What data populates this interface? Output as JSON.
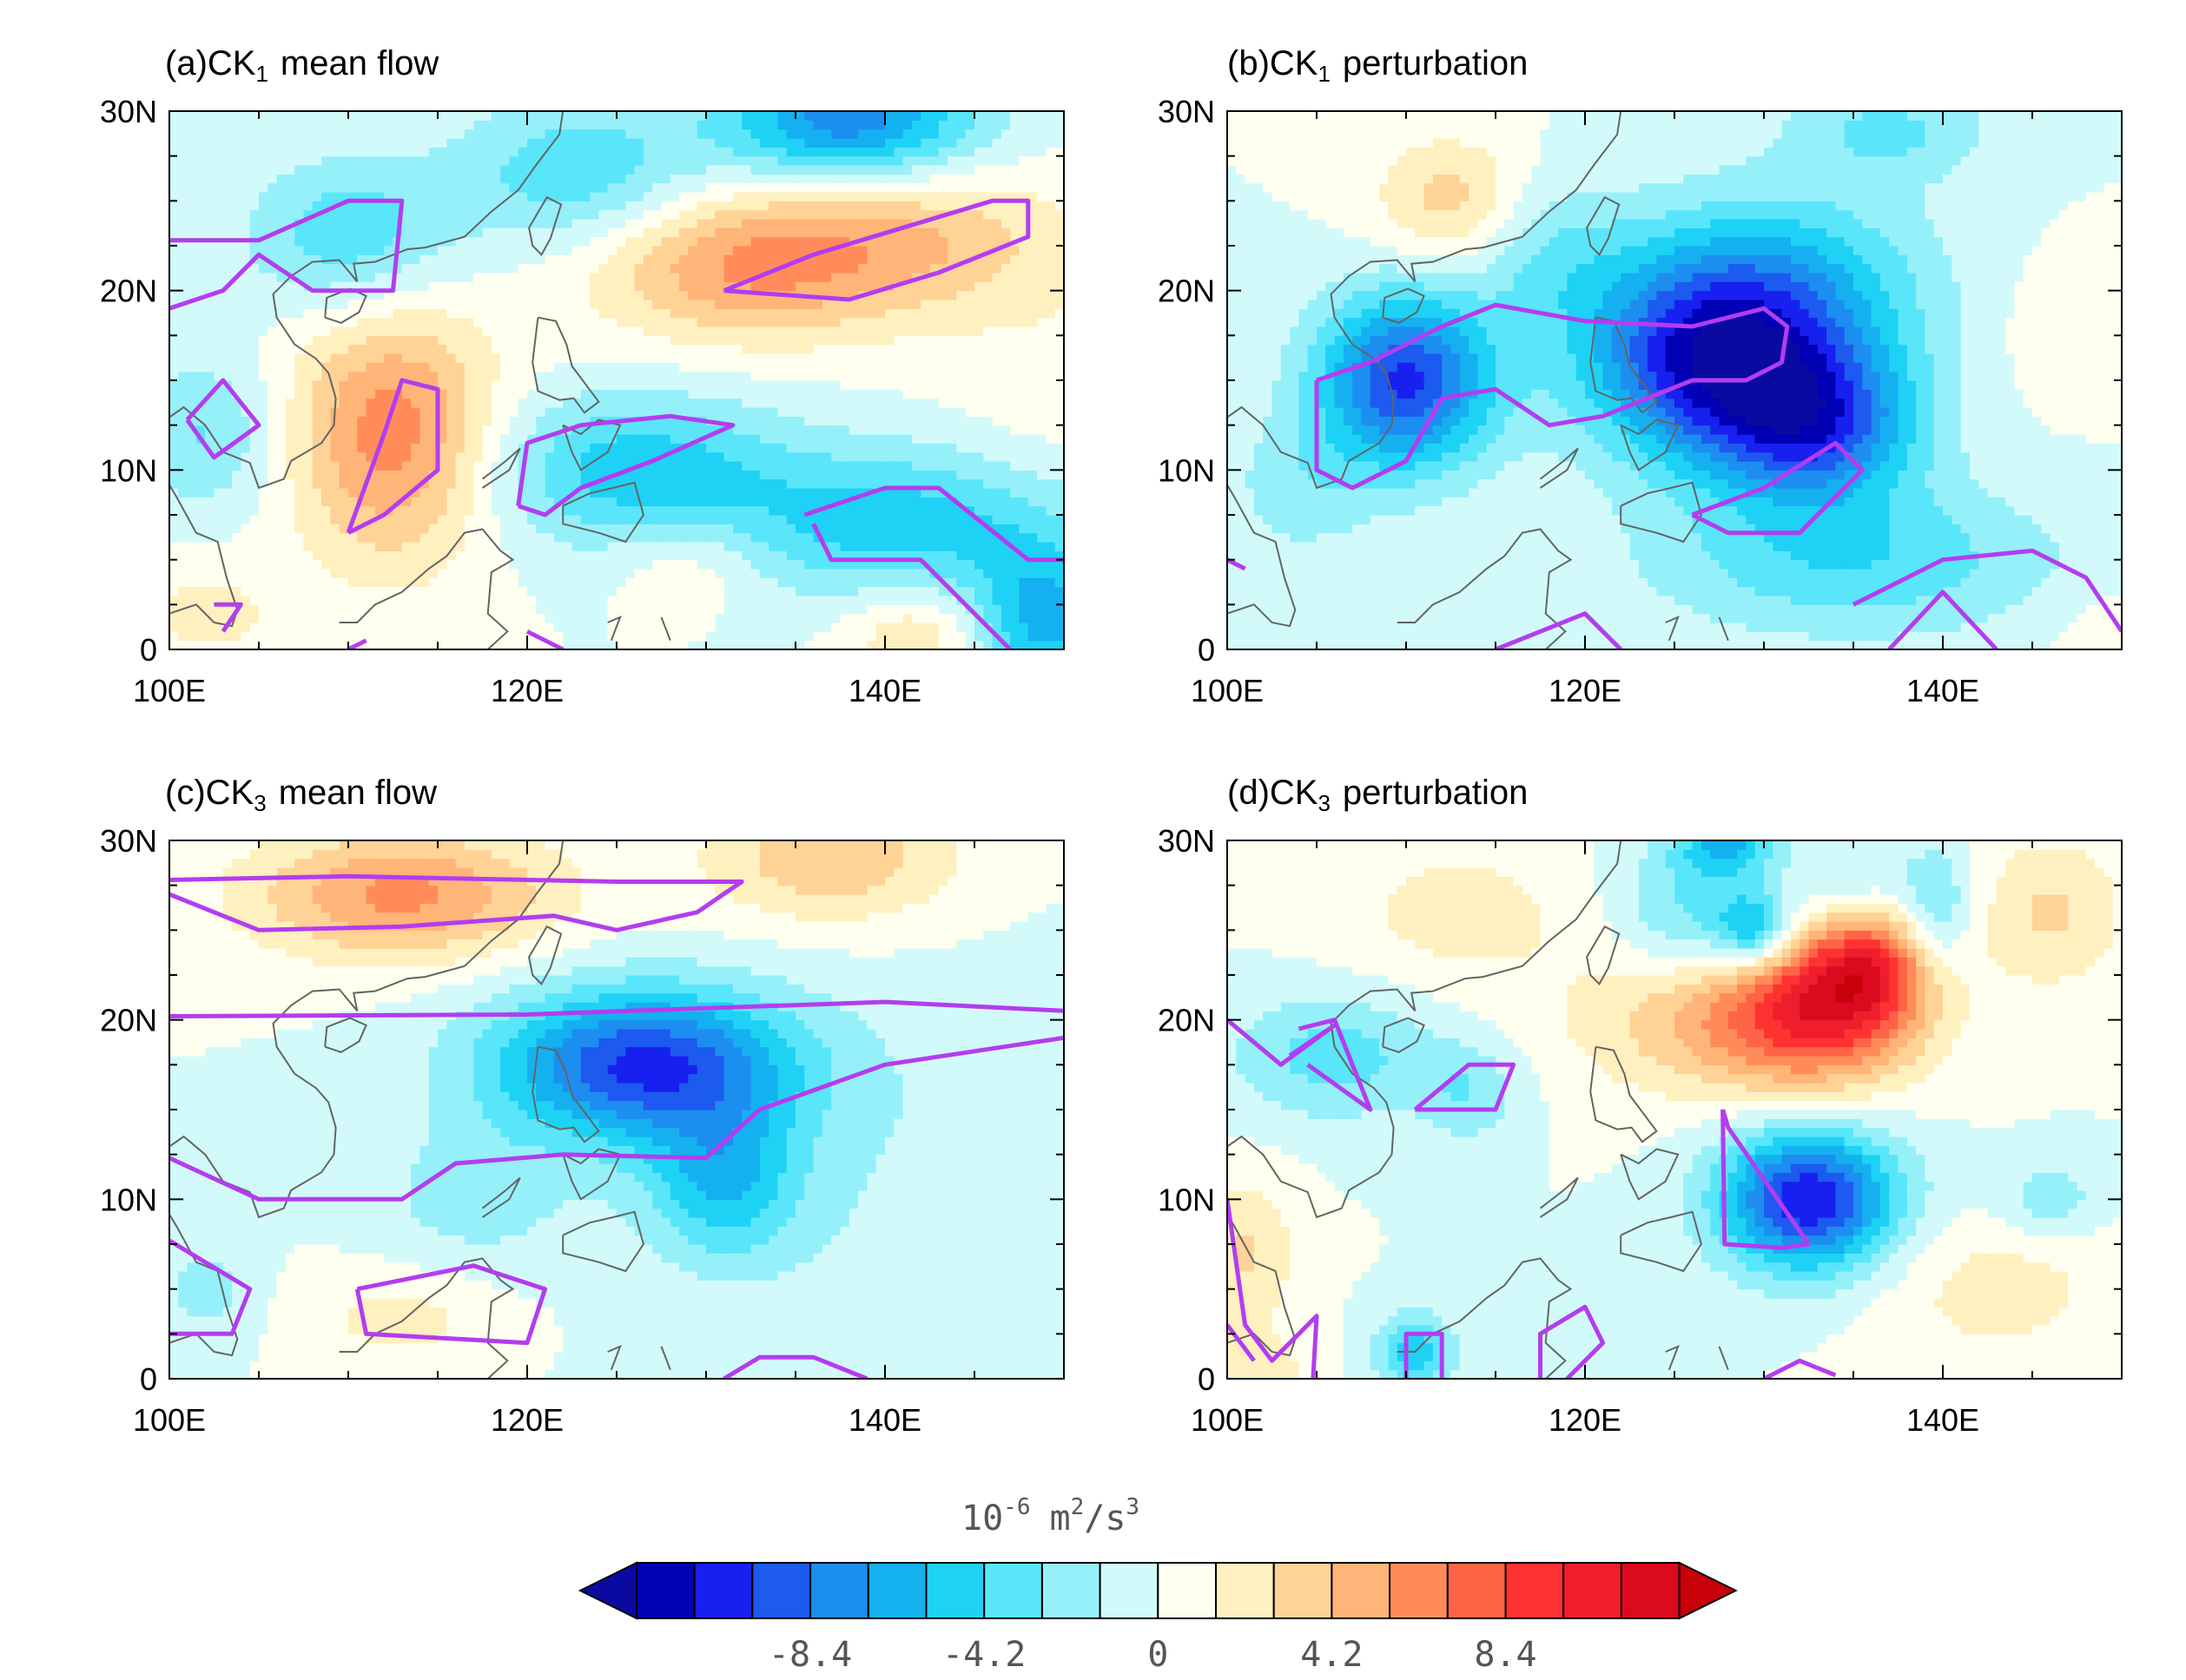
{
  "chart_data": [
    {
      "type": "heatmap",
      "panel": "a",
      "title_prefix": "(a)CK",
      "title_sub": "1",
      "title_suffix": "mean flow",
      "x_ticks": [
        "100E",
        "120E",
        "140E"
      ],
      "y_ticks": [
        "0",
        "10N",
        "20N",
        "30N"
      ],
      "xlim": [
        100,
        150
      ],
      "ylim": [
        0,
        30
      ],
      "blobs": [
        {
          "lon": 112.5,
          "lat": 12,
          "value": 6.5,
          "sx": 4,
          "sy": 5
        },
        {
          "lon": 132,
          "lat": 21.5,
          "value": 5.5,
          "sx": 6,
          "sy": 3
        },
        {
          "lon": 142,
          "lat": 23,
          "value": 3.5,
          "sx": 6,
          "sy": 3
        },
        {
          "lon": 138,
          "lat": 29.5,
          "value": -8,
          "sx": 5,
          "sy": 2.5
        },
        {
          "lon": 123,
          "lat": 26.5,
          "value": -4,
          "sx": 5,
          "sy": 3
        },
        {
          "lon": 110,
          "lat": 23,
          "value": -4,
          "sx": 4,
          "sy": 3
        },
        {
          "lon": 102,
          "lat": 12,
          "value": -3,
          "sx": 3,
          "sy": 3
        },
        {
          "lon": 126,
          "lat": 10,
          "value": -5,
          "sx": 6,
          "sy": 3
        },
        {
          "lon": 141,
          "lat": 7,
          "value": -5,
          "sx": 7,
          "sy": 3
        },
        {
          "lon": 149,
          "lat": 1.5,
          "value": -6,
          "sx": 3,
          "sy": 3
        },
        {
          "lon": 129,
          "lat": 5,
          "value": 2,
          "sx": 3,
          "sy": 2
        },
        {
          "lon": 142,
          "lat": 1,
          "value": 3,
          "sx": 3,
          "sy": 2
        },
        {
          "lon": 102,
          "lat": 2,
          "value": 2,
          "sx": 3,
          "sy": 2
        },
        {
          "lon": 150,
          "lat": 15,
          "value": 1,
          "sx": 5,
          "sy": 5
        }
      ],
      "contours": [
        [
          [
            100,
            22.8
          ],
          [
            105,
            22.8
          ],
          [
            110,
            25
          ],
          [
            113,
            25
          ],
          [
            112.5,
            20
          ],
          [
            108,
            20
          ],
          [
            105,
            22
          ],
          [
            103,
            20
          ],
          [
            100,
            19
          ]
        ],
        [
          [
            101,
            12.8
          ],
          [
            103,
            15
          ],
          [
            105,
            12.5
          ],
          [
            102.5,
            10.7
          ],
          [
            101,
            12.8
          ]
        ],
        [
          [
            110,
            6.5
          ],
          [
            112,
            12
          ],
          [
            113,
            15
          ],
          [
            115,
            14.5
          ],
          [
            115,
            10
          ],
          [
            112,
            7.5
          ],
          [
            110,
            6.5
          ]
        ],
        [
          [
            131,
            20
          ],
          [
            136,
            22
          ],
          [
            141,
            23.5
          ],
          [
            146,
            25
          ],
          [
            148,
            25
          ],
          [
            148,
            23
          ],
          [
            143,
            21
          ],
          [
            138,
            19.5
          ],
          [
            131,
            20
          ]
        ],
        [
          [
            119.5,
            8
          ],
          [
            120,
            11.5
          ],
          [
            123,
            12.5
          ],
          [
            128,
            13
          ],
          [
            131.5,
            12.5
          ],
          [
            127,
            10.5
          ],
          [
            123,
            9
          ],
          [
            121,
            7.5
          ],
          [
            119.5,
            8
          ]
        ],
        [
          [
            135.5,
            7.5
          ],
          [
            140,
            9
          ],
          [
            143,
            9
          ],
          [
            148,
            5
          ],
          [
            150,
            5
          ]
        ],
        [
          [
            136,
            7
          ],
          [
            137,
            5
          ],
          [
            142,
            5
          ],
          [
            147,
            0
          ]
        ],
        [
          [
            102.5,
            2.5
          ],
          [
            104,
            2.5
          ],
          [
            103,
            1
          ]
        ],
        [
          [
            110,
            0
          ],
          [
            111,
            0.5
          ]
        ],
        [
          [
            120,
            1
          ],
          [
            122,
            0
          ]
        ]
      ]
    },
    {
      "type": "heatmap",
      "panel": "b",
      "title_prefix": "(b)CK",
      "title_sub": "1",
      "title_suffix": "perturbation",
      "x_ticks": [
        "100E",
        "120E",
        "140E"
      ],
      "y_ticks": [
        "0",
        "10N",
        "20N",
        "30N"
      ],
      "xlim": [
        100,
        150
      ],
      "ylim": [
        0,
        30
      ],
      "blobs": [
        {
          "lon": 110,
          "lat": 15,
          "value": -10,
          "sx": 3.5,
          "sy": 3.5
        },
        {
          "lon": 127,
          "lat": 16,
          "value": -10,
          "sx": 5,
          "sy": 4
        },
        {
          "lon": 133,
          "lat": 12.5,
          "value": -8,
          "sx": 4,
          "sy": 3
        },
        {
          "lon": 131,
          "lat": 20,
          "value": -5,
          "sx": 6,
          "sy": 4
        },
        {
          "lon": 135,
          "lat": 5,
          "value": -4,
          "sx": 8,
          "sy": 3
        },
        {
          "lon": 137,
          "lat": 29,
          "value": -3,
          "sx": 4,
          "sy": 2
        },
        {
          "lon": 112.5,
          "lat": 25,
          "value": 3.5,
          "sx": 3,
          "sy": 2.5
        },
        {
          "lon": 118,
          "lat": 22,
          "value": -2.5,
          "sx": 3,
          "sy": 3
        },
        {
          "lon": 104,
          "lat": 9,
          "value": -2,
          "sx": 3,
          "sy": 3
        },
        {
          "lon": 147,
          "lat": 18,
          "value": 1,
          "sx": 3,
          "sy": 3
        },
        {
          "lon": 150,
          "lat": 1,
          "value": 1,
          "sx": 3,
          "sy": 2
        }
      ],
      "contours": [
        [
          [
            105,
            15
          ],
          [
            108,
            16
          ],
          [
            112,
            18
          ],
          [
            115,
            19.2
          ],
          [
            120,
            18.3
          ],
          [
            126,
            18
          ],
          [
            130,
            19
          ],
          [
            131.3,
            18
          ],
          [
            131,
            16
          ],
          [
            129,
            15
          ],
          [
            126,
            15
          ],
          [
            121,
            13
          ],
          [
            118,
            12.5
          ],
          [
            115,
            14.5
          ],
          [
            112,
            14
          ],
          [
            110,
            10.5
          ],
          [
            107,
            9
          ],
          [
            105,
            10
          ],
          [
            105,
            15
          ]
        ],
        [
          [
            126,
            7.5
          ],
          [
            130,
            9
          ],
          [
            134,
            11.5
          ],
          [
            135.5,
            10
          ],
          [
            132,
            6.5
          ],
          [
            128,
            6.5
          ],
          [
            126,
            7.5
          ]
        ],
        [
          [
            135,
            2.5
          ],
          [
            140,
            5
          ],
          [
            145,
            5.5
          ],
          [
            148,
            4
          ],
          [
            150,
            1
          ]
        ],
        [
          [
            137,
            0
          ],
          [
            140,
            3.2
          ],
          [
            143,
            0
          ]
        ],
        [
          [
            115,
            0
          ],
          [
            120,
            2
          ],
          [
            122,
            0
          ]
        ],
        [
          [
            100,
            5
          ],
          [
            101,
            4.5
          ]
        ]
      ]
    },
    {
      "type": "heatmap",
      "panel": "c",
      "title_prefix": "(c)CK",
      "title_sub": "3",
      "title_suffix": "mean flow",
      "x_ticks": [
        "100E",
        "120E",
        "140E"
      ],
      "y_ticks": [
        "0",
        "10N",
        "20N",
        "30N"
      ],
      "xlim": [
        100,
        150
      ],
      "ylim": [
        0,
        30
      ],
      "blobs": [
        {
          "lon": 113,
          "lat": 27,
          "value": 6,
          "sx": 6,
          "sy": 2.5
        },
        {
          "lon": 137,
          "lat": 29,
          "value": 4,
          "sx": 5,
          "sy": 2.5
        },
        {
          "lon": 126.5,
          "lat": 17.5,
          "value": -10,
          "sx": 6,
          "sy": 3
        },
        {
          "lon": 131,
          "lat": 11,
          "value": -5,
          "sx": 3,
          "sy": 3
        },
        {
          "lon": 117,
          "lat": 10,
          "value": -2,
          "sx": 4,
          "sy": 3
        },
        {
          "lon": 113,
          "lat": 3.5,
          "value": 2,
          "sx": 4,
          "sy": 2
        },
        {
          "lon": 102,
          "lat": 5,
          "value": -2,
          "sx": 2,
          "sy": 2
        },
        {
          "lon": 142,
          "lat": 10,
          "value": -1.2,
          "sx": 10,
          "sy": 8
        }
      ],
      "contours": [
        [
          [
            100,
            27.8
          ],
          [
            110,
            28
          ],
          [
            125,
            27.7
          ],
          [
            132,
            27.7
          ],
          [
            129.5,
            26
          ],
          [
            125,
            25
          ],
          [
            121.5,
            25.8
          ],
          [
            113,
            25.2
          ],
          [
            105,
            25
          ],
          [
            100,
            27
          ]
        ],
        [
          [
            100,
            20.2
          ],
          [
            120,
            20.3
          ],
          [
            140,
            21
          ],
          [
            150,
            20.5
          ]
        ],
        [
          [
            100,
            12.3
          ],
          [
            105,
            10
          ],
          [
            113,
            10
          ],
          [
            116,
            12
          ],
          [
            122,
            12.5
          ],
          [
            130,
            12.3
          ],
          [
            133,
            15
          ],
          [
            140,
            17.5
          ],
          [
            150,
            19
          ]
        ],
        [
          [
            100,
            7.7
          ],
          [
            104.5,
            5
          ],
          [
            103.5,
            2.5
          ],
          [
            100,
            2.5
          ]
        ],
        [
          [
            110.5,
            5
          ],
          [
            117,
            6.3
          ],
          [
            121,
            5
          ],
          [
            120,
            2
          ],
          [
            111,
            2.5
          ],
          [
            110.5,
            5
          ]
        ],
        [
          [
            131,
            0
          ],
          [
            133,
            1.2
          ],
          [
            136,
            1.2
          ],
          [
            139,
            0
          ]
        ]
      ]
    },
    {
      "type": "heatmap",
      "panel": "d",
      "title_prefix": "(d)CK",
      "title_sub": "3",
      "title_suffix": "perturbation",
      "x_ticks": [
        "100E",
        "120E",
        "140E"
      ],
      "y_ticks": [
        "0",
        "10N",
        "20N",
        "30N"
      ],
      "xlim": [
        100,
        150
      ],
      "ylim": [
        0,
        30
      ],
      "blobs": [
        {
          "lon": 133,
          "lat": 20.5,
          "value": 9,
          "sx": 4,
          "sy": 3
        },
        {
          "lon": 136,
          "lat": 23.5,
          "value": 7,
          "sx": 2.5,
          "sy": 2.5
        },
        {
          "lon": 126,
          "lat": 20,
          "value": 3.5,
          "sx": 5,
          "sy": 3
        },
        {
          "lon": 132.5,
          "lat": 10,
          "value": -11,
          "sx": 3.5,
          "sy": 2.8
        },
        {
          "lon": 129.5,
          "lat": 25,
          "value": -6,
          "sx": 1.5,
          "sy": 1.5
        },
        {
          "lon": 126,
          "lat": 26,
          "value": -3.5,
          "sx": 3,
          "sy": 3
        },
        {
          "lon": 128,
          "lat": 29.8,
          "value": -5,
          "sx": 2,
          "sy": 1.2
        },
        {
          "lon": 135,
          "lat": 27,
          "value": -3,
          "sx": 2,
          "sy": 2
        },
        {
          "lon": 139.5,
          "lat": 26,
          "value": -4,
          "sx": 1.5,
          "sy": 2.5
        },
        {
          "lon": 106,
          "lat": 18,
          "value": -3.5,
          "sx": 4,
          "sy": 2.5
        },
        {
          "lon": 113.5,
          "lat": 16,
          "value": -2.5,
          "sx": 2,
          "sy": 2
        },
        {
          "lon": 110.5,
          "lat": 1.5,
          "value": -5,
          "sx": 1.5,
          "sy": 1.5
        },
        {
          "lon": 101,
          "lat": 7,
          "value": 3,
          "sx": 2,
          "sy": 3
        },
        {
          "lon": 113,
          "lat": 26,
          "value": 2,
          "sx": 5,
          "sy": 3
        },
        {
          "lon": 146,
          "lat": 26,
          "value": 3,
          "sx": 3,
          "sy": 3
        },
        {
          "lon": 146,
          "lat": 10,
          "value": -2.5,
          "sx": 2,
          "sy": 1.5
        },
        {
          "lon": 143,
          "lat": 5,
          "value": 2,
          "sx": 5,
          "sy": 3
        },
        {
          "lon": 102,
          "lat": 0.5,
          "value": 2,
          "sx": 2,
          "sy": 1.5
        }
      ],
      "contours": [
        [
          [
            100,
            20
          ],
          [
            103,
            17.5
          ],
          [
            106,
            19.7
          ],
          [
            103.5,
            18
          ]
        ],
        [
          [
            104,
            19.5
          ],
          [
            106,
            20
          ],
          [
            108,
            15
          ],
          [
            104.5,
            17.5
          ]
        ],
        [
          [
            110.5,
            15
          ],
          [
            113.5,
            17.5
          ],
          [
            116,
            17.5
          ],
          [
            115,
            15
          ],
          [
            110.5,
            15
          ]
        ],
        [
          [
            127.7,
            15
          ],
          [
            128,
            14
          ],
          [
            132.5,
            7.5
          ],
          [
            131,
            7.3
          ],
          [
            127.8,
            7.5
          ],
          [
            127.7,
            15
          ]
        ],
        [
          [
            100,
            10
          ],
          [
            101,
            3
          ],
          [
            102.5,
            1
          ],
          [
            105,
            3.5
          ],
          [
            104.8,
            0
          ]
        ],
        [
          [
            100,
            3
          ],
          [
            101.5,
            1
          ]
        ],
        [
          [
            110,
            0
          ],
          [
            110,
            2.5
          ],
          [
            112,
            2.5
          ],
          [
            112,
            0
          ]
        ],
        [
          [
            117.5,
            0
          ],
          [
            117.5,
            2.5
          ],
          [
            120,
            4
          ],
          [
            121,
            2
          ],
          [
            119,
            0
          ]
        ],
        [
          [
            130,
            0
          ],
          [
            132,
            1
          ],
          [
            134,
            0.2
          ]
        ]
      ]
    }
  ],
  "colorbar": {
    "unit_base": "10",
    "unit_exp": "-6",
    "unit_rest": "m",
    "unit_exp2": "2",
    "unit_rest2": "/s",
    "unit_exp3": "3",
    "levels": [
      -12.6,
      -11.2,
      -9.8,
      -8.4,
      -7.0,
      -5.6,
      -4.2,
      -2.8,
      -1.4,
      0,
      1.4,
      2.8,
      4.2,
      5.6,
      7.0,
      8.4,
      9.8,
      11.2,
      12.6
    ],
    "colors": [
      "#0000b5",
      "#1820f0",
      "#1c5af0",
      "#1c8ef0",
      "#14b0f0",
      "#1ed2f5",
      "#5ae6fa",
      "#96f0fa",
      "#d2fafa",
      "#fffff0",
      "#fff0c0",
      "#ffd296",
      "#ffb478",
      "#ff8c5a",
      "#ff6446",
      "#ff3232",
      "#f01e2d",
      "#dc0a1e"
    ],
    "overflow_low": "#0a0aa0",
    "overflow_high": "#c8000a",
    "tick_labels": [
      "-8.4",
      "-4.2",
      "0",
      "4.2",
      "8.4"
    ],
    "tick_values": [
      -8.4,
      -4.2,
      0,
      4.2,
      8.4
    ]
  },
  "colors": {
    "contour": "#b43cf0",
    "coastline": "#646464"
  }
}
